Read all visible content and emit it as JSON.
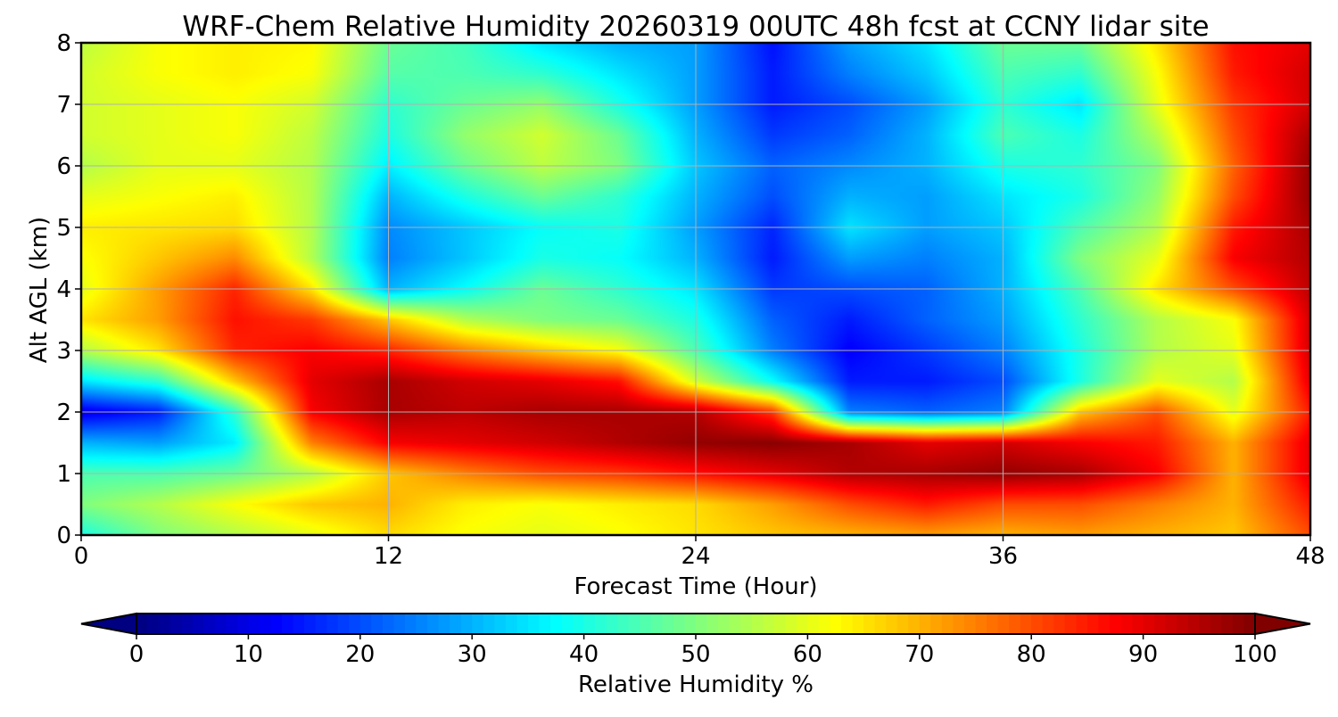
{
  "chart_data": {
    "type": "heatmap",
    "title": "WRF-Chem Relative Humidity 20260319 00UTC 48h fcst at CCNY lidar site",
    "xlabel": "Forecast Time (Hour)",
    "ylabel": "Alt AGL (km)",
    "xlim": [
      0,
      48
    ],
    "ylim": [
      0,
      8
    ],
    "x_ticks": [
      "0",
      "12",
      "24",
      "36",
      "48"
    ],
    "y_ticks": [
      "0",
      "1",
      "2",
      "3",
      "4",
      "5",
      "6",
      "7",
      "8"
    ],
    "grid": true,
    "colormap": "jet",
    "colorbar": {
      "label": "Relative Humidity %",
      "min": 0,
      "max": 100,
      "ticks": [
        "0",
        "10",
        "20",
        "30",
        "40",
        "50",
        "60",
        "70",
        "80",
        "90",
        "100"
      ],
      "extend": "both",
      "orientation": "horizontal",
      "placement": "bottom"
    },
    "x_hours": [
      0,
      3,
      6,
      9,
      12,
      15,
      18,
      21,
      24,
      27,
      30,
      33,
      36,
      39,
      42,
      45,
      48
    ],
    "y_km": [
      0,
      0.5,
      1,
      1.5,
      2,
      2.5,
      3,
      3.5,
      4,
      4.5,
      5,
      5.5,
      6,
      6.5,
      7,
      7.5,
      8
    ],
    "values": [
      [
        40,
        50,
        55,
        60,
        66,
        62,
        60,
        62,
        65,
        68,
        70,
        72,
        70,
        72,
        70,
        68,
        80
      ],
      [
        50,
        55,
        62,
        68,
        70,
        64,
        62,
        64,
        66,
        72,
        80,
        85,
        80,
        80,
        75,
        70,
        85
      ],
      [
        45,
        45,
        48,
        55,
        68,
        75,
        80,
        82,
        86,
        90,
        95,
        96,
        98,
        96,
        88,
        70,
        90
      ],
      [
        30,
        28,
        36,
        75,
        88,
        90,
        92,
        95,
        98,
        99,
        96,
        90,
        92,
        88,
        85,
        70,
        90
      ],
      [
        10,
        15,
        42,
        88,
        96,
        94,
        96,
        96,
        95,
        82,
        25,
        22,
        25,
        68,
        80,
        60,
        85
      ],
      [
        35,
        42,
        68,
        90,
        96,
        92,
        90,
        86,
        58,
        38,
        15,
        15,
        20,
        40,
        60,
        55,
        90
      ],
      [
        55,
        65,
        84,
        88,
        84,
        75,
        68,
        62,
        45,
        25,
        12,
        18,
        25,
        40,
        55,
        60,
        92
      ],
      [
        65,
        72,
        86,
        82,
        68,
        55,
        50,
        48,
        40,
        22,
        15,
        22,
        28,
        42,
        55,
        62,
        92
      ],
      [
        60,
        72,
        84,
        65,
        30,
        38,
        48,
        42,
        35,
        18,
        20,
        22,
        30,
        45,
        65,
        80,
        94
      ],
      [
        62,
        68,
        74,
        55,
        25,
        32,
        40,
        38,
        30,
        15,
        28,
        25,
        30,
        50,
        60,
        88,
        95
      ],
      [
        64,
        65,
        66,
        55,
        26,
        32,
        38,
        40,
        28,
        16,
        35,
        28,
        32,
        45,
        55,
        85,
        96
      ],
      [
        60,
        62,
        64,
        55,
        30,
        40,
        48,
        42,
        30,
        20,
        30,
        28,
        35,
        40,
        52,
        80,
        98
      ],
      [
        55,
        60,
        60,
        55,
        36,
        48,
        56,
        50,
        32,
        22,
        26,
        30,
        40,
        42,
        50,
        78,
        98
      ],
      [
        58,
        60,
        62,
        56,
        40,
        52,
        58,
        48,
        30,
        18,
        22,
        30,
        45,
        40,
        55,
        80,
        96
      ],
      [
        58,
        60,
        62,
        58,
        42,
        48,
        52,
        40,
        28,
        15,
        20,
        28,
        42,
        35,
        60,
        82,
        92
      ],
      [
        58,
        62,
        64,
        62,
        46,
        45,
        42,
        35,
        28,
        15,
        25,
        32,
        45,
        42,
        62,
        85,
        92
      ],
      [
        56,
        62,
        64,
        63,
        48,
        44,
        35,
        30,
        28,
        14,
        28,
        35,
        48,
        48,
        65,
        86,
        90
      ]
    ]
  }
}
